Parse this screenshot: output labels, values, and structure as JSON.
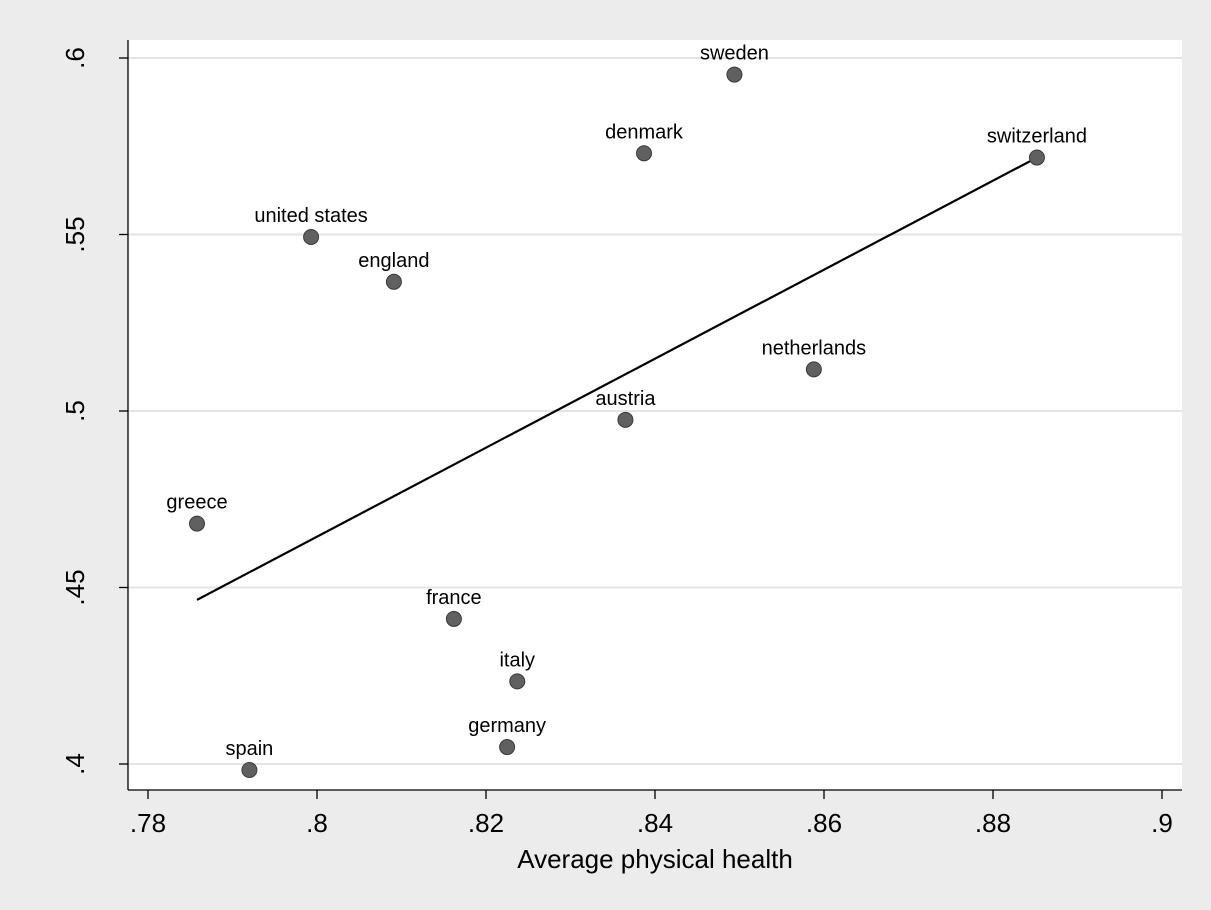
{
  "chart_data": {
    "type": "scatter",
    "xlabel": "Average physical health",
    "ylabel": "",
    "xlim": [
      0.775,
      0.905
    ],
    "ylim": [
      0.392,
      0.607
    ],
    "x_ticks": [
      0.78,
      0.8,
      0.82,
      0.84,
      0.86,
      0.88,
      0.9
    ],
    "x_tick_labels": [
      ".78",
      ".8",
      ".82",
      ".84",
      ".86",
      ".88",
      ".9"
    ],
    "y_ticks": [
      0.4,
      0.45,
      0.5,
      0.55,
      0.6
    ],
    "y_tick_labels": [
      ".4",
      ".45",
      ".5",
      ".55",
      ".6"
    ],
    "grid": "horizontal",
    "points": [
      {
        "label": "sweden",
        "x": 0.8494,
        "y": 0.5953
      },
      {
        "label": "denmark",
        "x": 0.8387,
        "y": 0.573
      },
      {
        "label": "switzerland",
        "x": 0.8852,
        "y": 0.5718
      },
      {
        "label": "united states",
        "x": 0.7993,
        "y": 0.5493
      },
      {
        "label": "england",
        "x": 0.8091,
        "y": 0.5366
      },
      {
        "label": "netherlands",
        "x": 0.8588,
        "y": 0.5118
      },
      {
        "label": "austria",
        "x": 0.8365,
        "y": 0.4975
      },
      {
        "label": "greece",
        "x": 0.7858,
        "y": 0.4681
      },
      {
        "label": "france",
        "x": 0.8162,
        "y": 0.4411
      },
      {
        "label": "italy",
        "x": 0.8237,
        "y": 0.4234
      },
      {
        "label": "germany",
        "x": 0.8225,
        "y": 0.4048
      },
      {
        "label": "spain",
        "x": 0.792,
        "y": 0.3983
      }
    ],
    "fit_line": {
      "x": [
        0.7858,
        0.8852
      ],
      "y": [
        0.4465,
        0.5718
      ]
    },
    "colors": {
      "marker": "#606060",
      "background": "#ececec",
      "plot_area": "#ffffff",
      "grid": "#e4e4e4",
      "fit_line": "#000000"
    }
  }
}
